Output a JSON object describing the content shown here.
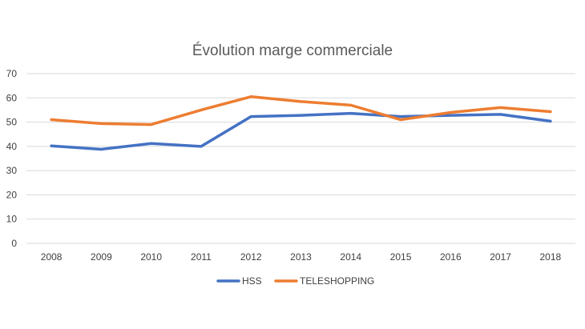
{
  "chart_data": {
    "type": "line",
    "title": "Évolution marge commerciale",
    "xlabel": "",
    "ylabel": "",
    "categories": [
      "2008",
      "2009",
      "2010",
      "2011",
      "2012",
      "2013",
      "2014",
      "2015",
      "2016",
      "2017",
      "2018"
    ],
    "ylim": [
      0,
      70
    ],
    "yticks": [
      0,
      10,
      20,
      30,
      40,
      50,
      60,
      70
    ],
    "grid": true,
    "legend_position": "bottom",
    "series": [
      {
        "name": "HSS",
        "color": "#4472c4",
        "values": [
          40.2,
          38.8,
          41.2,
          40.0,
          52.3,
          52.8,
          53.6,
          52.3,
          52.8,
          53.2,
          50.4
        ]
      },
      {
        "name": "TELESHOPPING",
        "color": "#ed7d31",
        "values": [
          51.0,
          49.4,
          49.0,
          55.0,
          60.5,
          58.5,
          57.0,
          51.0,
          54.0,
          56.0,
          54.3
        ]
      }
    ]
  }
}
